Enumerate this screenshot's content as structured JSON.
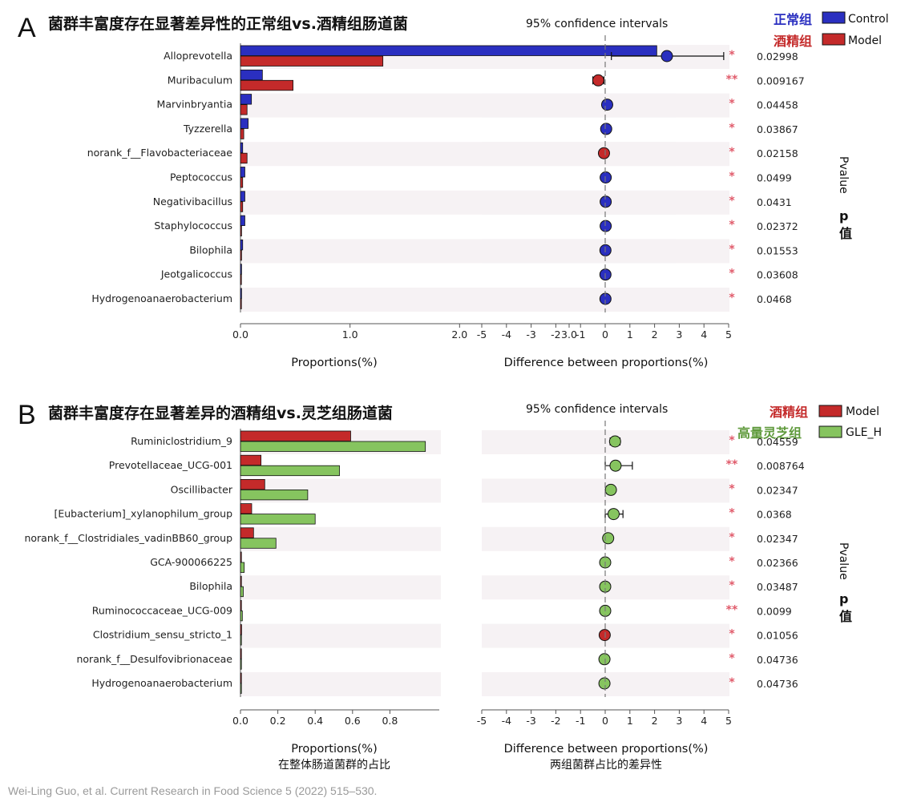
{
  "credit": "Wei-Ling Guo, et al. Current Research in Food Science 5 (2022) 515–530.",
  "colors": {
    "control": "#2a2fc0",
    "model": "#c42a2a",
    "gle": "#86c45f",
    "star": "#e05a6a",
    "stripe": "#f6f2f4"
  },
  "chart_data": [
    {
      "panel": "A",
      "type": "bar",
      "title": "菌群丰富度存在显著差异性的正常组vs.酒精组肠道菌",
      "ci_title": "95% confidence intervals",
      "xlabel": "Proportions(%)",
      "xlabel_sub": "",
      "diff_xlabel": "Difference between proportions(%)",
      "diff_xlabel_sub": "",
      "pvalue_label": "Pvalue",
      "pvalue_label_cn1": "p",
      "pvalue_label_cn2": "值",
      "xlim": [
        0,
        3.9
      ],
      "xticks": [
        0.0,
        1.0,
        2.0,
        3.0
      ],
      "xtick_labels": [
        "0.0",
        "1.0",
        "2.0",
        "3.0"
      ],
      "diff_xlim": [
        -5,
        5
      ],
      "diff_xticks": [
        "-5",
        "-4",
        "-3",
        "-2",
        "-1",
        "0",
        "1",
        "2",
        "3",
        "4",
        "5"
      ],
      "categories": [
        "Alloprevotella",
        "Muribaculum",
        "Marvinbryantia",
        "Tyzzerella",
        "norank_f__Flavobacteriaceae",
        "Peptococcus",
        "Negativibacillus",
        "Staphylococcus",
        "Bilophila",
        "Jeotgalicoccus",
        "Hydrogenoanaerobacterium"
      ],
      "series": [
        {
          "name": "Control",
          "name_cn": "正常组",
          "color": "#2a2fc0",
          "values": [
            3.8,
            0.2,
            0.1,
            0.07,
            0.02,
            0.04,
            0.04,
            0.04,
            0.02,
            0.01,
            0.01
          ]
        },
        {
          "name": "Model",
          "name_cn": "酒精组",
          "color": "#c42a2a",
          "values": [
            1.3,
            0.48,
            0.06,
            0.03,
            0.06,
            0.02,
            0.02,
            0.01,
            0.01,
            0.0,
            0.0
          ]
        }
      ],
      "diff": [
        2.5,
        -0.28,
        0.08,
        0.04,
        -0.05,
        0.02,
        0.02,
        0.02,
        0.01,
        0.01,
        0.01
      ],
      "ci_low": [
        0.25,
        -0.5,
        0.0,
        0.0,
        -0.12,
        0.0,
        0.0,
        0.0,
        0.0,
        0.0,
        0.0
      ],
      "ci_high": [
        4.8,
        -0.05,
        0.15,
        0.08,
        0.0,
        0.05,
        0.05,
        0.05,
        0.03,
        0.02,
        0.02
      ],
      "point_color": [
        "#2a2fc0",
        "#c42a2a",
        "#2a2fc0",
        "#2a2fc0",
        "#c42a2a",
        "#2a2fc0",
        "#2a2fc0",
        "#2a2fc0",
        "#2a2fc0",
        "#2a2fc0",
        "#2a2fc0"
      ],
      "stars": [
        "*",
        "**",
        "*",
        "*",
        "*",
        "*",
        "*",
        "*",
        "*",
        "*",
        "*"
      ],
      "pvalues": [
        "0.02998",
        "0.009167",
        "0.04458",
        "0.03867",
        "0.02158",
        "0.0499",
        "0.0431",
        "0.02372",
        "0.01553",
        "0.03608",
        "0.0468"
      ]
    },
    {
      "panel": "B",
      "type": "bar",
      "title": "菌群丰富度存在显著差异的酒精组vs.灵芝组肠道菌",
      "ci_title": "95% confidence intervals",
      "xlabel": "Proportions(%)",
      "xlabel_sub": "在整体肠道菌群的占比",
      "diff_xlabel": "Difference between proportions(%)",
      "diff_xlabel_sub": "两组菌群占比的差异性",
      "pvalue_label": "Pvalue",
      "pvalue_label_cn1": "p",
      "pvalue_label_cn2": "值",
      "xlim": [
        0,
        1.03
      ],
      "xticks": [
        0.0,
        0.2,
        0.4,
        0.6,
        0.8
      ],
      "xtick_labels": [
        "0.0",
        "0.2",
        "0.4",
        "0.6",
        "0.8"
      ],
      "diff_xlim": [
        -5,
        5
      ],
      "diff_xticks": [
        "-5",
        "-4",
        "-3",
        "-2",
        "-1",
        "0",
        "1",
        "2",
        "3",
        "4",
        "5"
      ],
      "categories": [
        "Ruminiclostridium_9",
        "Prevotellaceae_UCG-001",
        "Oscillibacter",
        "[Eubacterium]_xylanophilum_group",
        "norank_f__Clostridiales_vadinBB60_group",
        "GCA-900066225",
        "Bilophila",
        "Ruminococcaceae_UCG-009",
        "Clostridium_sensu_stricto_1",
        "norank_f__Desulfovibrionaceae",
        "Hydrogenoanaerobacterium"
      ],
      "series": [
        {
          "name": "Model",
          "name_cn": "酒精组",
          "color": "#c42a2a",
          "values": [
            0.59,
            0.11,
            0.13,
            0.06,
            0.07,
            0.005,
            0.005,
            0.005,
            0.006,
            0.002,
            0.002
          ]
        },
        {
          "name": "GLE_H",
          "name_cn": "高量灵芝组",
          "color": "#86c45f",
          "values": [
            0.99,
            0.53,
            0.36,
            0.4,
            0.19,
            0.02,
            0.015,
            0.01,
            0.002,
            0.001,
            0.001
          ]
        }
      ],
      "diff": [
        0.4,
        0.42,
        0.23,
        0.34,
        0.12,
        0.0,
        0.0,
        0.0,
        -0.02,
        -0.03,
        -0.03
      ],
      "ci_low": [
        0.2,
        0.0,
        0.05,
        0.0,
        -0.05,
        -0.03,
        -0.03,
        -0.03,
        -0.05,
        -0.05,
        -0.05
      ],
      "ci_high": [
        0.6,
        1.1,
        0.38,
        0.72,
        0.25,
        0.03,
        0.03,
        0.03,
        0.0,
        0.0,
        0.0
      ],
      "point_color": [
        "#86c45f",
        "#86c45f",
        "#86c45f",
        "#86c45f",
        "#86c45f",
        "#86c45f",
        "#86c45f",
        "#86c45f",
        "#c42a2a",
        "#86c45f",
        "#86c45f"
      ],
      "stars": [
        "*",
        "**",
        "*",
        "*",
        "*",
        "*",
        "*",
        "**",
        "*",
        "*",
        "*"
      ],
      "pvalues": [
        "0.04559",
        "0.008764",
        "0.02347",
        "0.0368",
        "0.02347",
        "0.02366",
        "0.03487",
        "0.0099",
        "0.01056",
        "0.04736",
        "0.04736"
      ]
    }
  ]
}
